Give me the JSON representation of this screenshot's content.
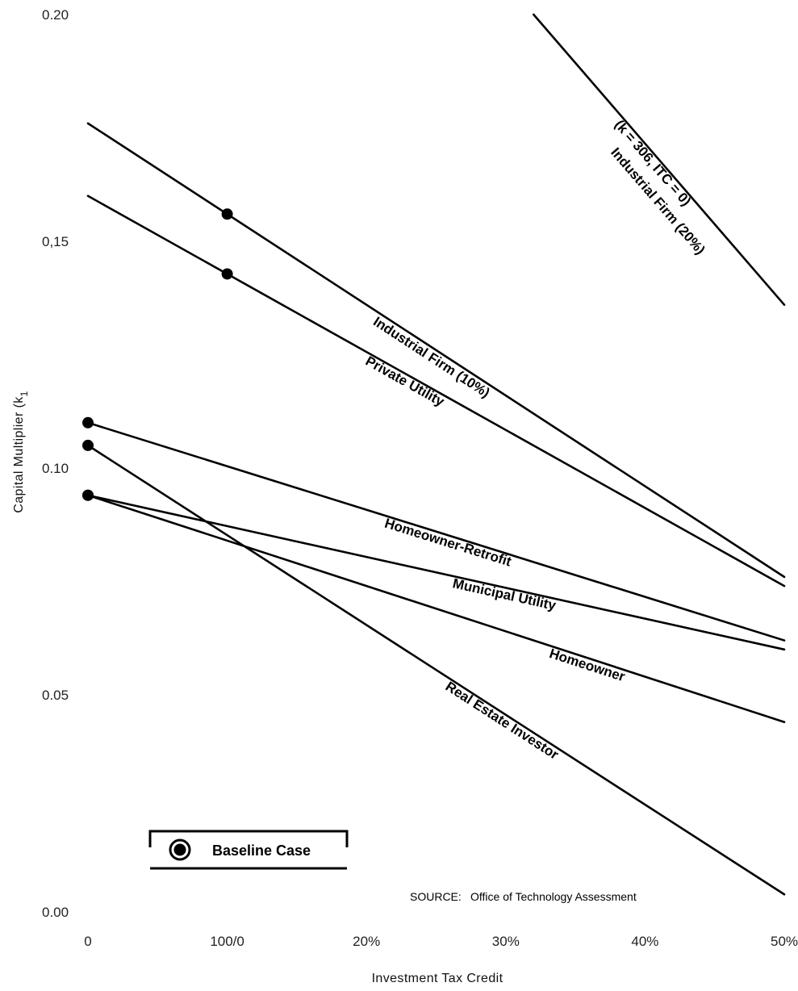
{
  "chart_data": {
    "type": "line",
    "xlabel": "Investment Tax Credit",
    "ylabel": "Capital Multiplier (k",
    "ylabel_subscript": "1",
    "x_ticks": [
      {
        "value": 0,
        "label": "0"
      },
      {
        "value": 10,
        "label": "100/0"
      },
      {
        "value": 20,
        "label": "20%"
      },
      {
        "value": 30,
        "label": "30%"
      },
      {
        "value": 40,
        "label": "40%"
      },
      {
        "value": 50,
        "label": "50%"
      }
    ],
    "y_ticks": [
      {
        "value": 0.0,
        "label": "0.00"
      },
      {
        "value": 0.05,
        "label": "0.05"
      },
      {
        "value": 0.1,
        "label": "0.10"
      },
      {
        "value": 0.15,
        "label": "0,15"
      },
      {
        "value": 0.2,
        "label": "0.20"
      }
    ],
    "xlim": [
      0,
      50
    ],
    "ylim": [
      0,
      0.2
    ],
    "grid": false,
    "series": [
      {
        "name": "Industrial Firm (20%)",
        "name_line2": "(k = 306, ITC = 0)",
        "x": [
          32,
          50
        ],
        "y": [
          0.2,
          0.136
        ],
        "baseline_x": null
      },
      {
        "name": "Industrial Firm (10%)",
        "x": [
          0,
          50
        ],
        "y": [
          0.176,
          0.076
        ],
        "baseline_x": 10
      },
      {
        "name": "Private Utility",
        "x": [
          0,
          50
        ],
        "y": [
          0.16,
          0.074
        ],
        "baseline_x": 10
      },
      {
        "name": "Homeowner-Retrofit",
        "x": [
          0,
          50
        ],
        "y": [
          0.11,
          0.062
        ],
        "baseline_x": 0
      },
      {
        "name": "Municipal Utility",
        "x": [
          0,
          50
        ],
        "y": [
          0.094,
          0.06
        ],
        "baseline_x": 0
      },
      {
        "name": "Homeowner",
        "x": [
          0,
          50
        ],
        "y": [
          0.094,
          0.044
        ],
        "baseline_x": 0
      },
      {
        "name": "Real Estate Investor",
        "x": [
          0,
          50
        ],
        "y": [
          0.105,
          0.006
        ],
        "baseline_x": 0
      }
    ],
    "legend": {
      "label": "Baseline Case",
      "placement": "bottom-left"
    },
    "source": {
      "prefix": "SOURCE:",
      "text": "Office of Technology Assessment"
    }
  }
}
